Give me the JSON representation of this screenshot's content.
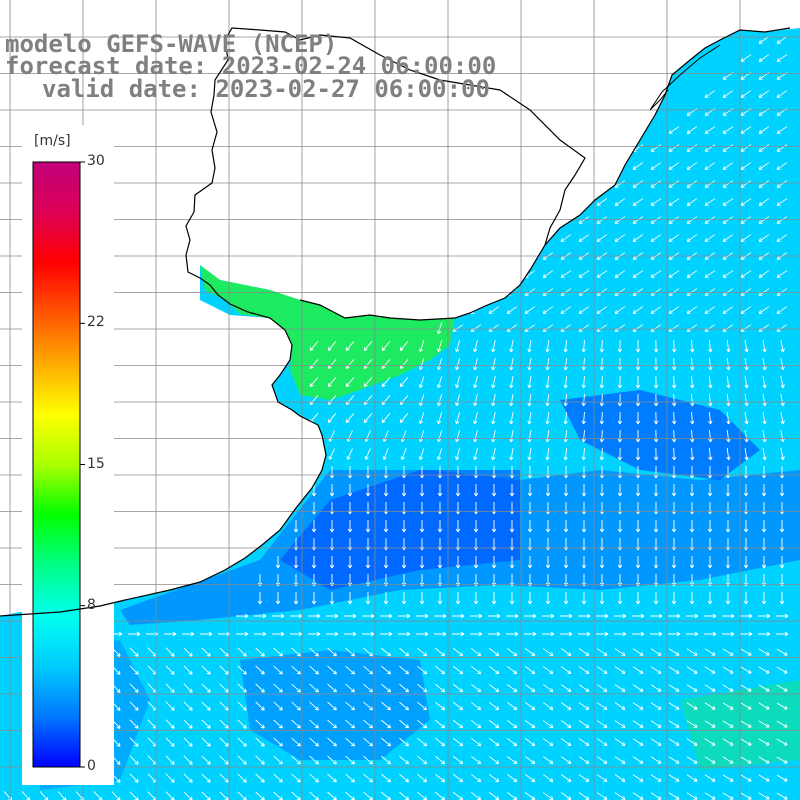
{
  "title": {
    "model": "modelo GEFS-WAVE (NCEP)",
    "forecast": "forecast date: 2023-02-24 06:00:00",
    "valid": "valid date: 2023-02-27 06:00:00"
  },
  "colorbar": {
    "unit": "[m/s]",
    "range": [
      0,
      30
    ],
    "ticks": [
      {
        "value": 30,
        "label": "30"
      },
      {
        "value": 22,
        "label": "22"
      },
      {
        "value": 15,
        "label": "15"
      },
      {
        "value": 8,
        "label": "8"
      },
      {
        "value": 0,
        "label": "0"
      }
    ],
    "colors": [
      "#0000ff",
      "#0077ff",
      "#00ccff",
      "#00ffee",
      "#00ff88",
      "#00ff00",
      "#aaff00",
      "#ffff00",
      "#ffaa00",
      "#ff5500",
      "#ff0000",
      "#dd0055",
      "#c0007a"
    ]
  },
  "field_colors": {
    "ocean_light": "#00d2ff",
    "ocean_mid": "#0098ff",
    "ocean_deep": "#0044ff",
    "strong_wind": "#22ee44",
    "land": "#ffffff",
    "grid": "#8a8a8a",
    "coast": "#000000",
    "arrow": "#ffffff"
  }
}
